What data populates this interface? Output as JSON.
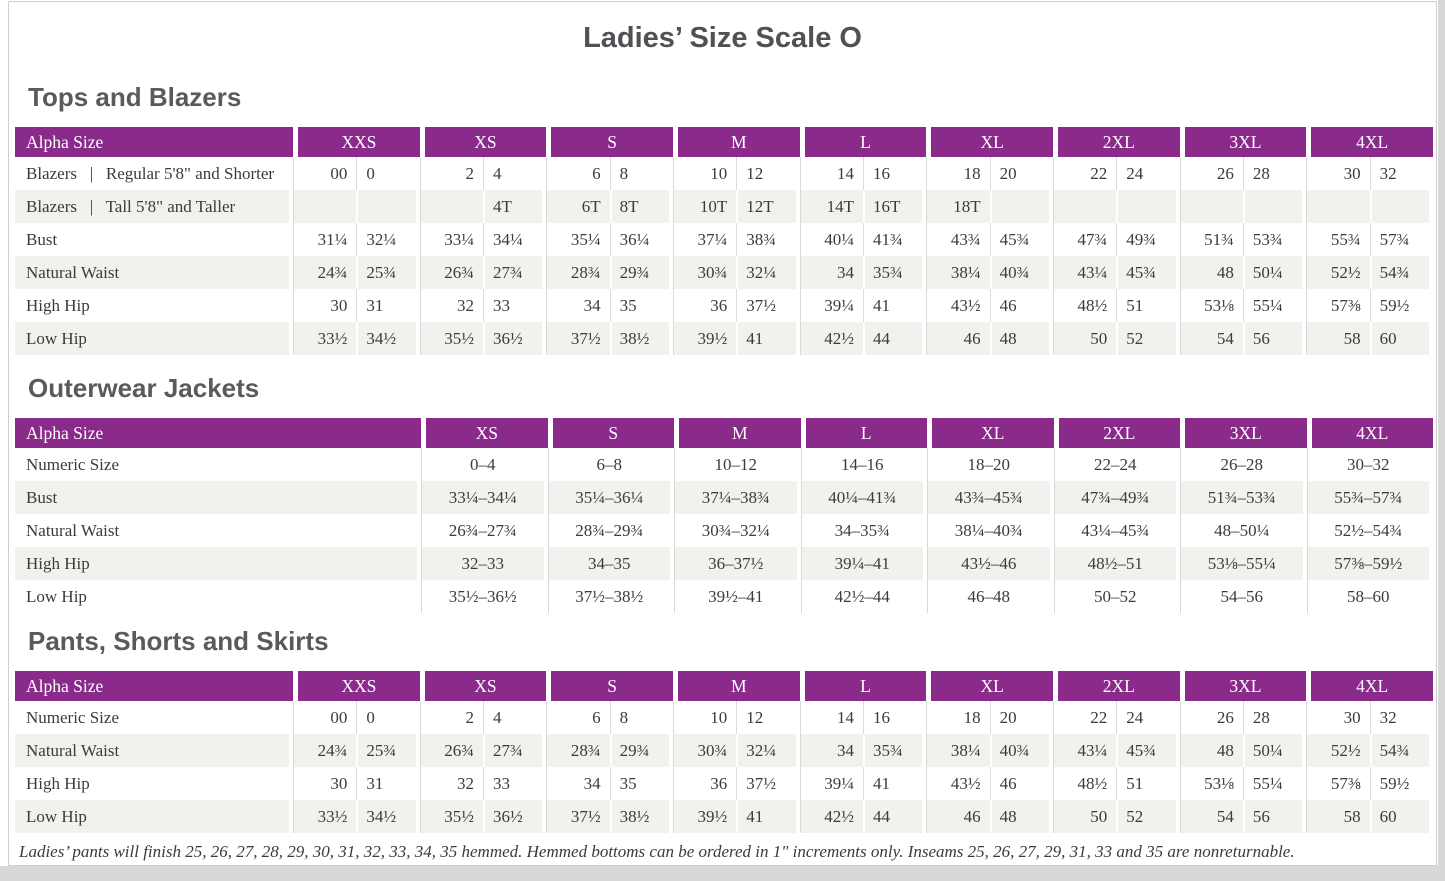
{
  "page": {
    "title": "Ladies’ Size Scale O"
  },
  "colors": {
    "header_bg": "#8A2B8B",
    "header_text": "#FFFFFF",
    "row_stripe": "#F2F1EE",
    "divider": "#D9D9D9",
    "body_text": "#3B3B3B",
    "heading_text": "#595A5C",
    "page_edge": "#D8D8D8"
  },
  "sections": [
    {
      "heading": "Tops and Blazers",
      "type": "paired",
      "header_label": "Alpha Size",
      "groups": [
        "XXS",
        "XS",
        "S",
        "M",
        "L",
        "XL",
        "2XL",
        "3XL",
        "4XL"
      ],
      "rows": [
        {
          "label": "Blazers  |  Regular 5'8\" and Shorter",
          "values": [
            [
              "00",
              "0"
            ],
            [
              "2",
              "4"
            ],
            [
              "6",
              "8"
            ],
            [
              "10",
              "12"
            ],
            [
              "14",
              "16"
            ],
            [
              "18",
              "20"
            ],
            [
              "22",
              "24"
            ],
            [
              "26",
              "28"
            ],
            [
              "30",
              "32"
            ]
          ]
        },
        {
          "label": "Blazers  |  Tall 5'8\" and Taller",
          "values": [
            [
              "",
              ""
            ],
            [
              "",
              "4T"
            ],
            [
              "6T",
              "8T"
            ],
            [
              "10T",
              "12T"
            ],
            [
              "14T",
              "16T"
            ],
            [
              "18T",
              ""
            ],
            [
              "",
              ""
            ],
            [
              "",
              ""
            ],
            [
              "",
              ""
            ]
          ]
        },
        {
          "label": "Bust",
          "values": [
            [
              "31¼",
              "32¼"
            ],
            [
              "33¼",
              "34¼"
            ],
            [
              "35¼",
              "36¼"
            ],
            [
              "37¼",
              "38¾"
            ],
            [
              "40¼",
              "41¾"
            ],
            [
              "43¾",
              "45¾"
            ],
            [
              "47¾",
              "49¾"
            ],
            [
              "51¾",
              "53¾"
            ],
            [
              "55¾",
              "57¾"
            ]
          ]
        },
        {
          "label": "Natural Waist",
          "values": [
            [
              "24¾",
              "25¾"
            ],
            [
              "26¾",
              "27¾"
            ],
            [
              "28¾",
              "29¾"
            ],
            [
              "30¾",
              "32¼"
            ],
            [
              "34",
              "35¾"
            ],
            [
              "38¼",
              "40¾"
            ],
            [
              "43¼",
              "45¾"
            ],
            [
              "48",
              "50¼"
            ],
            [
              "52½",
              "54¾"
            ]
          ]
        },
        {
          "label": "High Hip",
          "values": [
            [
              "30",
              "31"
            ],
            [
              "32",
              "33"
            ],
            [
              "34",
              "35"
            ],
            [
              "36",
              "37½"
            ],
            [
              "39¼",
              "41"
            ],
            [
              "43½",
              "46"
            ],
            [
              "48½",
              "51"
            ],
            [
              "53⅛",
              "55¼"
            ],
            [
              "57⅜",
              "59½"
            ]
          ]
        },
        {
          "label": "Low Hip",
          "values": [
            [
              "33½",
              "34½"
            ],
            [
              "35½",
              "36½"
            ],
            [
              "37½",
              "38½"
            ],
            [
              "39½",
              "41"
            ],
            [
              "42½",
              "44"
            ],
            [
              "46",
              "48"
            ],
            [
              "50",
              "52"
            ],
            [
              "54",
              "56"
            ],
            [
              "58",
              "60"
            ]
          ]
        }
      ]
    },
    {
      "heading": "Outerwear Jackets",
      "type": "single",
      "header_label": "Alpha Size",
      "groups": [
        "XS",
        "S",
        "M",
        "L",
        "XL",
        "2XL",
        "3XL",
        "4XL"
      ],
      "rows": [
        {
          "label": "Numeric Size",
          "values": [
            "0–4",
            "6–8",
            "10–12",
            "14–16",
            "18–20",
            "22–24",
            "26–28",
            "30–32"
          ]
        },
        {
          "label": "Bust",
          "values": [
            "33¼–34¼",
            "35¼–36¼",
            "37¼–38¾",
            "40¼–41¾",
            "43¾–45¾",
            "47¾–49¾",
            "51¾–53¾",
            "55¾–57¾"
          ]
        },
        {
          "label": "Natural Waist",
          "values": [
            "26¾–27¾",
            "28¾–29¾",
            "30¾–32¼",
            "34–35¾",
            "38¼–40¾",
            "43¼–45¾",
            "48–50¼",
            "52½–54¾"
          ]
        },
        {
          "label": "High Hip",
          "values": [
            "32–33",
            "34–35",
            "36–37½",
            "39¼–41",
            "43½–46",
            "48½–51",
            "53⅛–55¼",
            "57⅜–59½"
          ]
        },
        {
          "label": "Low Hip",
          "values": [
            "35½–36½",
            "37½–38½",
            "39½–41",
            "42½–44",
            "46–48",
            "50–52",
            "54–56",
            "58–60"
          ]
        }
      ]
    },
    {
      "heading": "Pants, Shorts and Skirts",
      "type": "paired",
      "header_label": "Alpha Size",
      "groups": [
        "XXS",
        "XS",
        "S",
        "M",
        "L",
        "XL",
        "2XL",
        "3XL",
        "4XL"
      ],
      "rows": [
        {
          "label": "Numeric Size",
          "values": [
            [
              "00",
              "0"
            ],
            [
              "2",
              "4"
            ],
            [
              "6",
              "8"
            ],
            [
              "10",
              "12"
            ],
            [
              "14",
              "16"
            ],
            [
              "18",
              "20"
            ],
            [
              "22",
              "24"
            ],
            [
              "26",
              "28"
            ],
            [
              "30",
              "32"
            ]
          ]
        },
        {
          "label": "Natural Waist",
          "values": [
            [
              "24¾",
              "25¾"
            ],
            [
              "26¾",
              "27¾"
            ],
            [
              "28¾",
              "29¾"
            ],
            [
              "30¾",
              "32¼"
            ],
            [
              "34",
              "35¾"
            ],
            [
              "38¼",
              "40¾"
            ],
            [
              "43¼",
              "45¾"
            ],
            [
              "48",
              "50¼"
            ],
            [
              "52½",
              "54¾"
            ]
          ]
        },
        {
          "label": "High Hip",
          "values": [
            [
              "30",
              "31"
            ],
            [
              "32",
              "33"
            ],
            [
              "34",
              "35"
            ],
            [
              "36",
              "37½"
            ],
            [
              "39¼",
              "41"
            ],
            [
              "43½",
              "46"
            ],
            [
              "48½",
              "51"
            ],
            [
              "53⅛",
              "55¼"
            ],
            [
              "57⅜",
              "59½"
            ]
          ]
        },
        {
          "label": "Low Hip",
          "values": [
            [
              "33½",
              "34½"
            ],
            [
              "35½",
              "36½"
            ],
            [
              "37½",
              "38½"
            ],
            [
              "39½",
              "41"
            ],
            [
              "42½",
              "44"
            ],
            [
              "46",
              "48"
            ],
            [
              "50",
              "52"
            ],
            [
              "54",
              "56"
            ],
            [
              "58",
              "60"
            ]
          ]
        }
      ]
    }
  ],
  "footnote": "Ladies’ pants will finish 25, 26, 27, 28, 29, 30, 31, 32, 33, 34, 35 hemmed. Hemmed bottoms can be ordered in 1\" increments only. Inseams 25, 26, 27, 29, 31, 33 and 35 are nonreturnable."
}
